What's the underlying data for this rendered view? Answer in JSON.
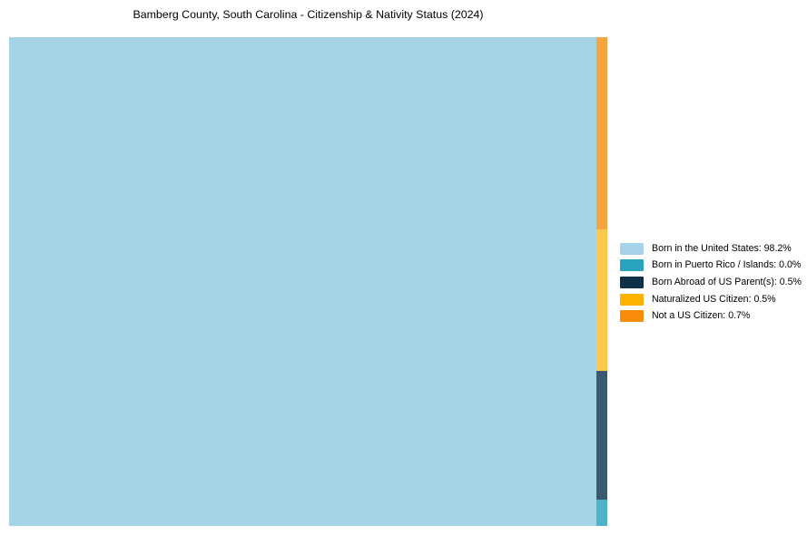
{
  "title": "Bamberg County, South Carolina - Citizenship & Nativity Status (2024)",
  "chart_data": {
    "type": "treemap",
    "title": "Bamberg County, South Carolina - Citizenship & Nativity Status (2024)",
    "unit": "%",
    "categories": [
      "Born in the United States",
      "Born in Puerto Rico / Islands",
      "Born Abroad of US Parent(s)",
      "Naturalized US Citizen",
      "Not a US Citizen"
    ],
    "values": [
      98.2,
      0.0,
      0.5,
      0.5,
      0.7
    ],
    "legend_position": "right-center",
    "grid": false,
    "legend": [
      {
        "label": "Born in the United States: 98.2%",
        "color": "#a6d3ea"
      },
      {
        "label": "Born in Puerto Rico / Islands: 0.0%",
        "color": "#2aa3bd"
      },
      {
        "label": "Born Abroad of US Parent(s): 0.5%",
        "color": "#0f3049"
      },
      {
        "label": "Naturalized US Citizen: 0.5%",
        "color": "#ffb300"
      },
      {
        "label": "Not a US Citizen: 0.7%",
        "color": "#f98d0b"
      }
    ],
    "main_rect": {
      "category": "Born in the United States",
      "value": 98.2,
      "color": "#a4d3e8"
    },
    "strip_segments": [
      {
        "category": "Not a US Citizen",
        "value": 0.7,
        "color": "#f7a440",
        "height_pct": 39.4
      },
      {
        "category": "Naturalized US Citizen",
        "value": 0.5,
        "color": "#fdc84d",
        "height_pct": 28.9
      },
      {
        "category": "Born Abroad of US Parent(s)",
        "value": 0.5,
        "color": "#3a5a70",
        "height_pct": 26.3
      },
      {
        "category": "Born in Puerto Rico / Islands",
        "value": 0.0,
        "color": "#4db3c8",
        "height_pct": 5.4
      }
    ]
  }
}
